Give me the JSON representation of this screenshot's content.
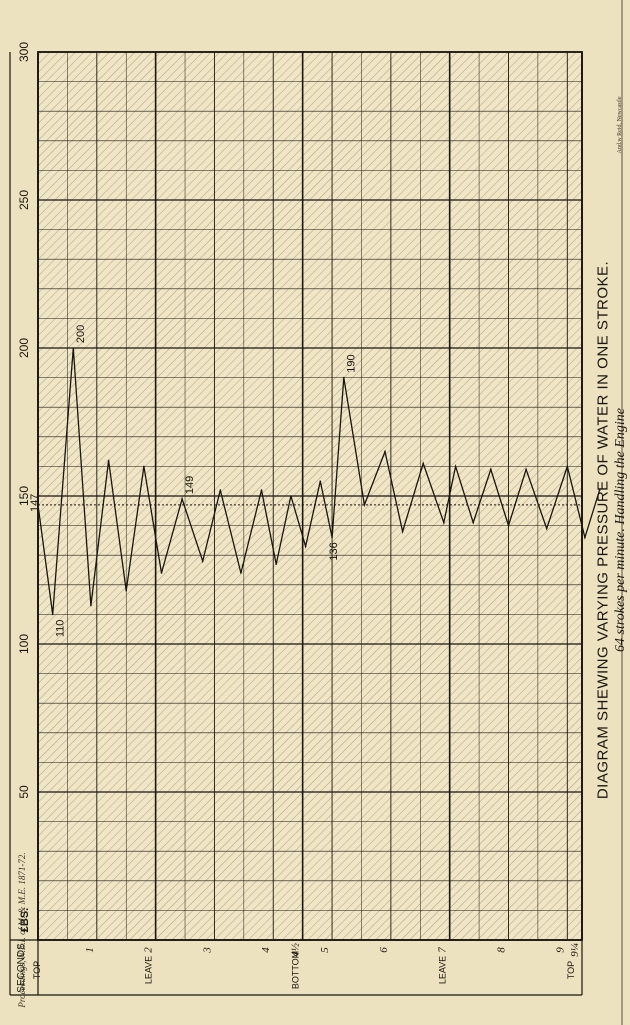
{
  "chart_data": {
    "type": "line",
    "title": "DIAGRAM SHEWING VARYING PRESSURE OF WATER IN ONE STROKE.",
    "subtitle": "64 strokes per minute. Handling the Engine",
    "pressure_axis_label": "£BS.",
    "time_axis_label": "SECONDS",
    "pressure_ticks": [
      "50",
      "100",
      "150",
      "200",
      "250",
      "300"
    ],
    "pressure_range": [
      0,
      300
    ],
    "second_ticks": [
      "1",
      "2",
      "3",
      "4",
      "4½",
      "5",
      "6",
      "7",
      "8",
      "9",
      "9¼"
    ],
    "stroke_positions": [
      "TOP",
      "LEAVE",
      "BOTTOM",
      "LEAVE",
      "TOP"
    ],
    "time_range": [
      0,
      9.25
    ],
    "grid": true,
    "series": [
      {
        "x": [
          0,
          0.25,
          0.6,
          0.9,
          1.2,
          1.5,
          1.8,
          2.1,
          2.45,
          2.8,
          3.1,
          3.45,
          3.8,
          4.05,
          4.3,
          4.55,
          4.8,
          5.0,
          5.2,
          5.55,
          5.9,
          6.2,
          6.55,
          6.9,
          7.1,
          7.4,
          7.7,
          8.0,
          8.3,
          8.65,
          9.0,
          9.3,
          9.55
        ],
        "y": [
          147,
          110,
          200,
          113,
          162,
          118,
          160,
          124,
          149,
          128,
          152,
          124,
          152,
          127,
          150,
          133,
          155,
          136,
          190,
          147,
          165,
          138,
          161,
          141,
          160,
          141,
          159,
          140,
          159,
          139,
          160,
          136,
          152
        ]
      }
    ],
    "annotations": [
      {
        "x": 0,
        "y": 147,
        "text": "147"
      },
      {
        "x": 0.25,
        "y": 110,
        "text": "110"
      },
      {
        "x": 0.6,
        "y": 200,
        "text": "200"
      },
      {
        "x": 2.45,
        "y": 149,
        "text": "149"
      },
      {
        "x": 5.0,
        "y": 136,
        "text": "136"
      },
      {
        "x": 5.2,
        "y": 190,
        "text": "190"
      }
    ],
    "reference_line": {
      "y": 147,
      "style": "dotted"
    }
  },
  "footer_proceedings": "Proceedings, N.E.I. of M. & M.E. 1871-72.",
  "footer_credit": "And.w Reid, Newcastle"
}
